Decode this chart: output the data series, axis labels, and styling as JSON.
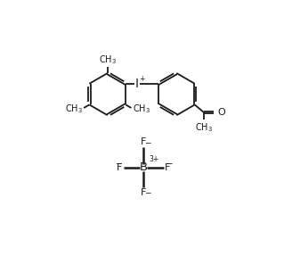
{
  "bg_color": "#ffffff",
  "line_color": "#1a1a1a",
  "line_width": 1.3,
  "font_size": 7.5,
  "figsize": [
    3.19,
    2.87
  ],
  "dpi": 100,
  "xlim": [
    -0.5,
    10.5
  ],
  "ylim": [
    0,
    9.5
  ]
}
